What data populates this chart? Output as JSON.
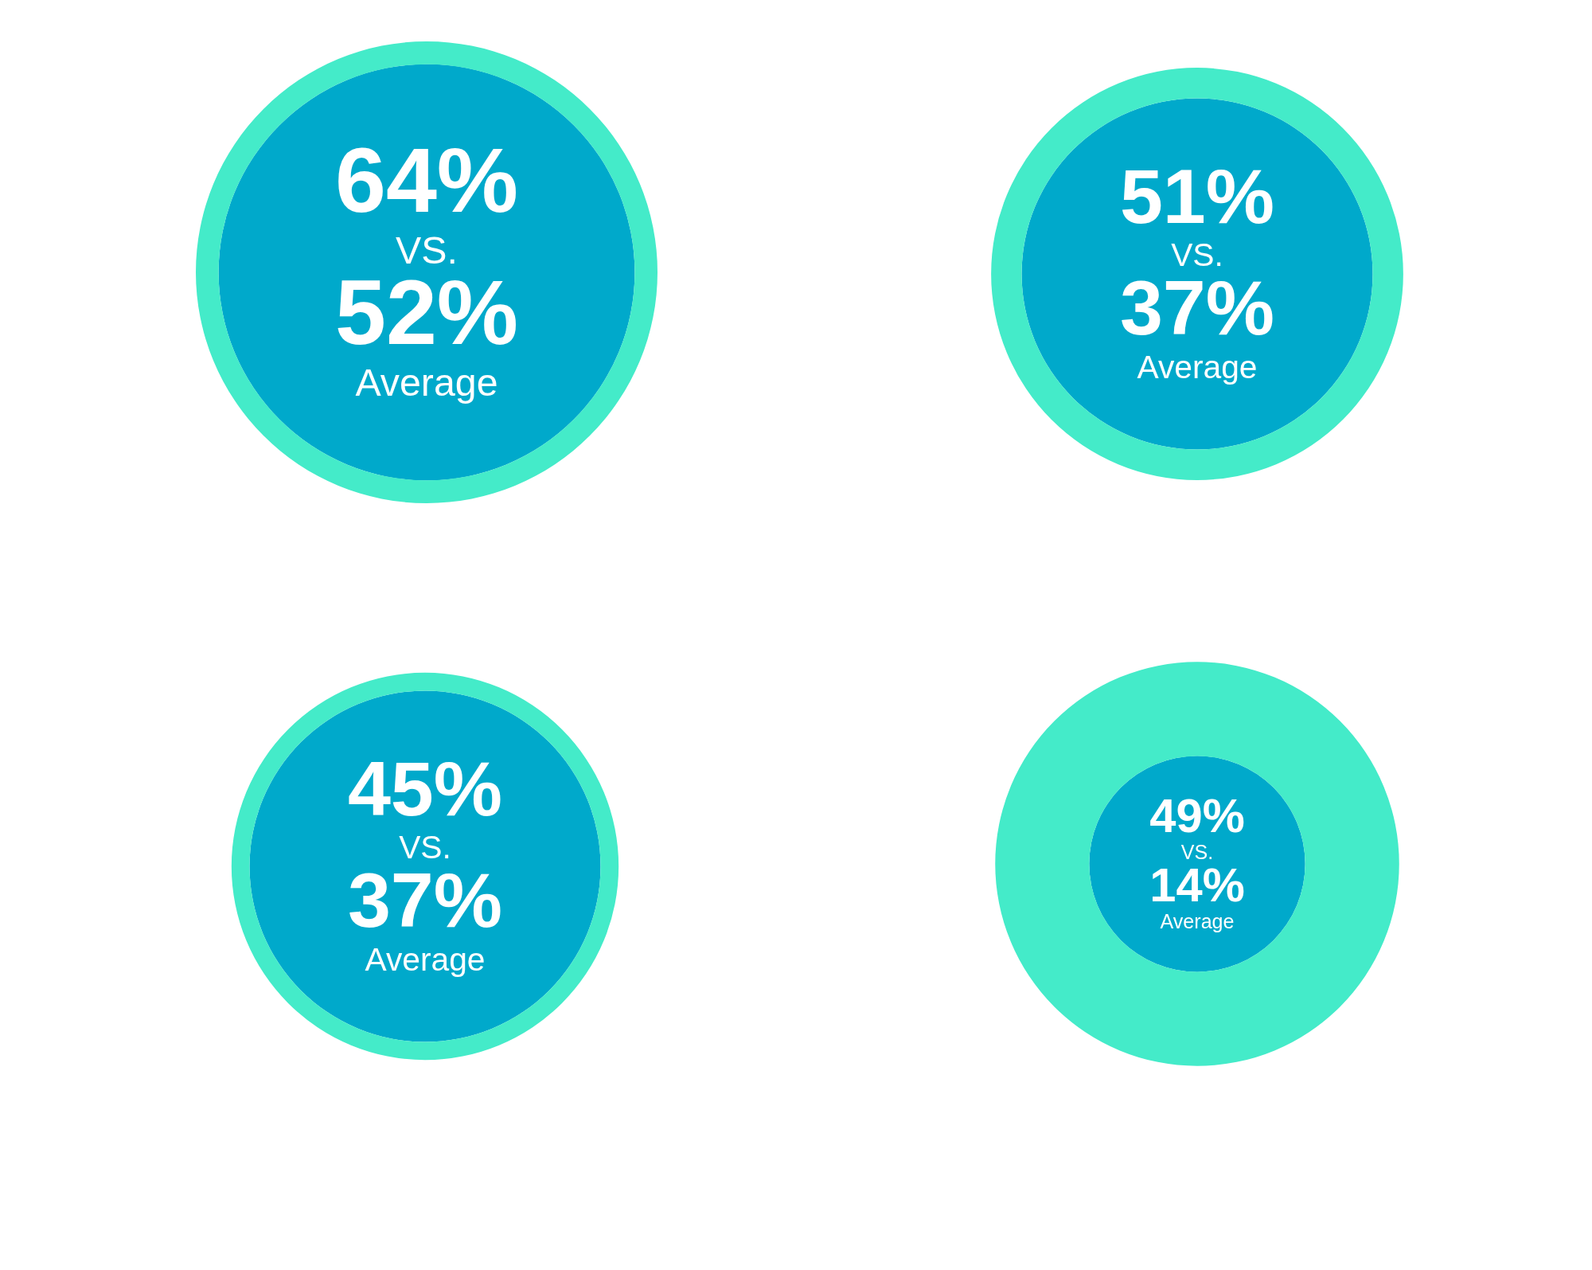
{
  "chart_data": [
    {
      "type": "other",
      "values": [
        64,
        52
      ],
      "value_labels": [
        "64%",
        "52%"
      ],
      "colors": [
        "#44ebc9",
        "#00a9cb"
      ],
      "annotations": [
        "VS.",
        "Average"
      ]
    },
    {
      "type": "other",
      "values": [
        51,
        37
      ],
      "value_labels": [
        "51%",
        "37%"
      ],
      "colors": [
        "#44ebc9",
        "#00a9cb"
      ],
      "annotations": [
        "VS.",
        "Average"
      ]
    },
    {
      "type": "other",
      "values": [
        45,
        37
      ],
      "value_labels": [
        "45%",
        "37%"
      ],
      "colors": [
        "#44ebc9",
        "#00a9cb"
      ],
      "annotations": [
        "VS.",
        "Average"
      ]
    },
    {
      "type": "other",
      "values": [
        49,
        14
      ],
      "value_labels": [
        "49%",
        "14%"
      ],
      "colors": [
        "#44ebc9",
        "#00a9cb"
      ],
      "annotations": [
        "VS.",
        "Average"
      ]
    }
  ]
}
